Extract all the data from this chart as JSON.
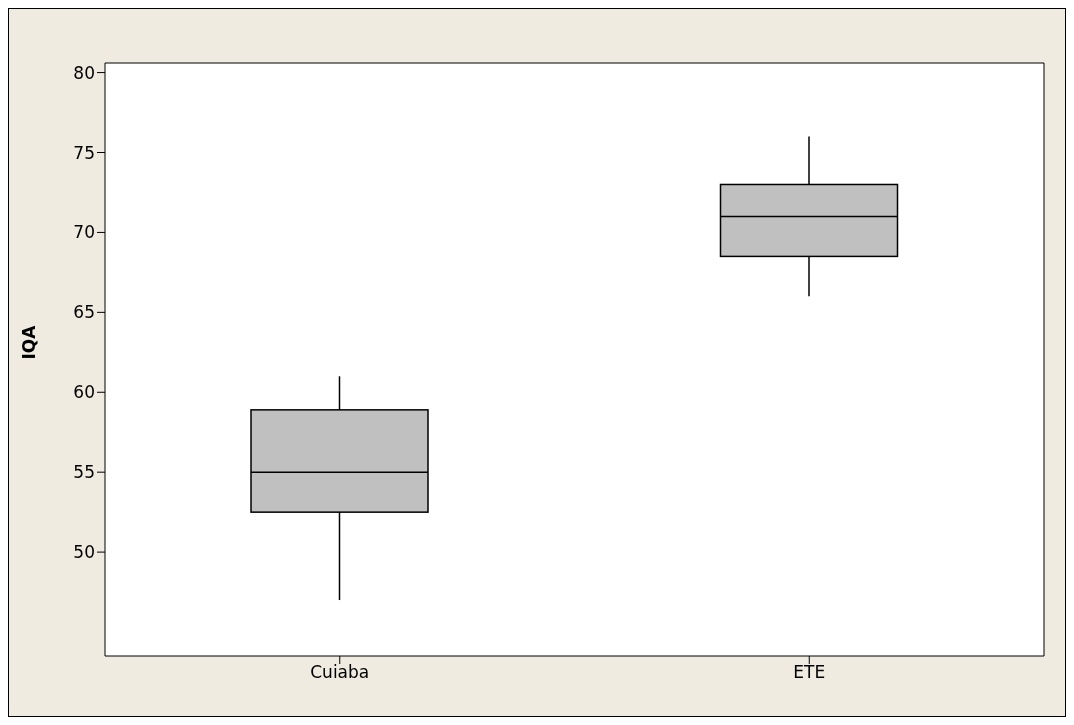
{
  "chart_data": {
    "type": "box",
    "ylabel": "IQA",
    "categories": [
      "Cuiaba",
      "ETE"
    ],
    "boxes": [
      {
        "low": 47,
        "q1": 52.5,
        "median": 55,
        "q3": 58.9,
        "high": 61
      },
      {
        "low": 66,
        "q1": 68.5,
        "median": 71,
        "q3": 73,
        "high": 76
      }
    ],
    "color": "#c0c0c0",
    "ylim": [
      43.5,
      80.6
    ],
    "yticks": [
      50,
      55,
      60,
      65,
      70,
      75,
      80
    ],
    "grid": false
  }
}
